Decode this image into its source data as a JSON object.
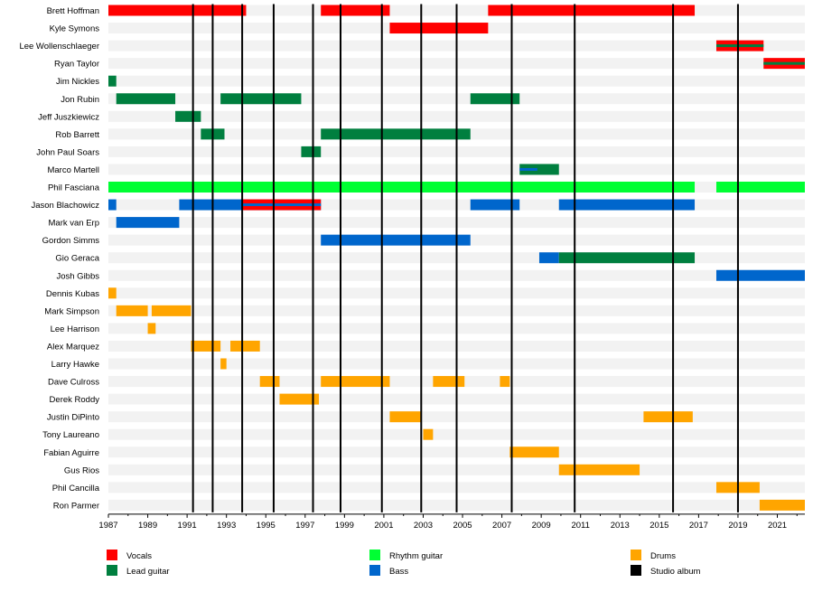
{
  "chart_data": {
    "type": "timeline",
    "x_range": [
      1987,
      2022.4
    ],
    "x_ticks": [
      "1987",
      "1989",
      "1991",
      "1993",
      "1995",
      "1997",
      "1999",
      "2001",
      "2003",
      "2005",
      "2007",
      "2009",
      "2011",
      "2013",
      "2015",
      "2017",
      "2019",
      "2021"
    ],
    "members": [
      {
        "name": "Brett Hoffman",
        "bars": [
          {
            "role": "vocals",
            "start": 1987.0,
            "end": 1994.0
          },
          {
            "role": "vocals",
            "start": 1997.8,
            "end": 2001.3
          },
          {
            "role": "vocals",
            "start": 2006.3,
            "end": 2016.8
          }
        ]
      },
      {
        "name": "Kyle Symons",
        "bars": [
          {
            "role": "vocals",
            "start": 2001.3,
            "end": 2006.3
          }
        ]
      },
      {
        "name": "Lee Wollenschlaeger",
        "bars": [
          {
            "role": "vocals",
            "start": 2017.9,
            "end": 2020.3
          },
          {
            "role": "lead_guitar",
            "start": 2017.9,
            "end": 2020.3,
            "thin": true
          }
        ]
      },
      {
        "name": "Ryan Taylor",
        "bars": [
          {
            "role": "vocals",
            "start": 2020.3,
            "end": 2022.4
          },
          {
            "role": "lead_guitar",
            "start": 2020.3,
            "end": 2022.4,
            "thin": true
          }
        ]
      },
      {
        "name": "Jim Nickles",
        "bars": [
          {
            "role": "lead_guitar",
            "start": 1987.0,
            "end": 1987.4
          }
        ]
      },
      {
        "name": "Jon Rubin",
        "bars": [
          {
            "role": "lead_guitar",
            "start": 1987.4,
            "end": 1990.4
          },
          {
            "role": "lead_guitar",
            "start": 1992.7,
            "end": 1996.8
          },
          {
            "role": "lead_guitar",
            "start": 2005.4,
            "end": 2007.9
          }
        ]
      },
      {
        "name": "Jeff Juszkiewicz",
        "bars": [
          {
            "role": "lead_guitar",
            "start": 1990.4,
            "end": 1991.7
          }
        ]
      },
      {
        "name": "Rob Barrett",
        "bars": [
          {
            "role": "lead_guitar",
            "start": 1991.7,
            "end": 1992.9
          },
          {
            "role": "lead_guitar",
            "start": 1997.8,
            "end": 2005.4
          }
        ]
      },
      {
        "name": "John Paul Soars",
        "bars": [
          {
            "role": "lead_guitar",
            "start": 1996.8,
            "end": 1997.8
          }
        ]
      },
      {
        "name": "Marco Martell",
        "bars": [
          {
            "role": "lead_guitar",
            "start": 2007.9,
            "end": 2009.9
          },
          {
            "role": "bass",
            "start": 2007.9,
            "end": 2008.8,
            "thin": true
          }
        ]
      },
      {
        "name": "Phil Fasciana",
        "bars": [
          {
            "role": "rhythm_guitar",
            "start": 1987.0,
            "end": 2016.8
          },
          {
            "role": "rhythm_guitar",
            "start": 2017.9,
            "end": 2022.4
          }
        ]
      },
      {
        "name": "Jason Blachowicz",
        "bars": [
          {
            "role": "bass",
            "start": 1987.0,
            "end": 1987.4
          },
          {
            "role": "bass",
            "start": 1990.6,
            "end": 1997.8
          },
          {
            "role": "vocals",
            "start": 1993.8,
            "end": 1997.8
          },
          {
            "role": "bass",
            "start": 1993.8,
            "end": 1997.8,
            "thin": true
          },
          {
            "role": "bass",
            "start": 2005.4,
            "end": 2007.9
          },
          {
            "role": "bass",
            "start": 2009.9,
            "end": 2016.8
          }
        ]
      },
      {
        "name": "Mark van Erp",
        "bars": [
          {
            "role": "bass",
            "start": 1987.4,
            "end": 1990.6
          }
        ]
      },
      {
        "name": "Gordon Simms",
        "bars": [
          {
            "role": "bass",
            "start": 1997.8,
            "end": 2005.4
          }
        ]
      },
      {
        "name": "Gio Geraca",
        "bars": [
          {
            "role": "bass",
            "start": 2008.9,
            "end": 2009.9
          },
          {
            "role": "lead_guitar",
            "start": 2009.9,
            "end": 2016.8
          }
        ]
      },
      {
        "name": "Josh Gibbs",
        "bars": [
          {
            "role": "bass",
            "start": 2017.9,
            "end": 2022.4
          }
        ]
      },
      {
        "name": "Dennis Kubas",
        "bars": [
          {
            "role": "drums",
            "start": 1987.0,
            "end": 1987.4
          }
        ]
      },
      {
        "name": "Mark Simpson",
        "bars": [
          {
            "role": "drums",
            "start": 1987.4,
            "end": 1989.0
          },
          {
            "role": "drums",
            "start": 1989.2,
            "end": 1991.2
          }
        ]
      },
      {
        "name": "Lee Harrison",
        "bars": [
          {
            "role": "drums",
            "start": 1989.0,
            "end": 1989.4
          }
        ]
      },
      {
        "name": "Alex Marquez",
        "bars": [
          {
            "role": "drums",
            "start": 1991.2,
            "end": 1992.7
          },
          {
            "role": "drums",
            "start": 1993.2,
            "end": 1994.7
          }
        ]
      },
      {
        "name": "Larry Hawke",
        "bars": [
          {
            "role": "drums",
            "start": 1992.7,
            "end": 1993.0
          }
        ]
      },
      {
        "name": "Dave Culross",
        "bars": [
          {
            "role": "drums",
            "start": 1994.7,
            "end": 1995.7
          },
          {
            "role": "drums",
            "start": 1997.8,
            "end": 2001.3
          },
          {
            "role": "drums",
            "start": 2003.5,
            "end": 2005.1
          },
          {
            "role": "drums",
            "start": 2006.9,
            "end": 2007.4
          }
        ]
      },
      {
        "name": "Derek Roddy",
        "bars": [
          {
            "role": "drums",
            "start": 1995.7,
            "end": 1997.7
          }
        ]
      },
      {
        "name": "Justin DiPinto",
        "bars": [
          {
            "role": "drums",
            "start": 2001.3,
            "end": 2002.9
          },
          {
            "role": "drums",
            "start": 2014.2,
            "end": 2016.7
          }
        ]
      },
      {
        "name": "Tony Laureano",
        "bars": [
          {
            "role": "drums",
            "start": 2003.0,
            "end": 2003.5
          }
        ]
      },
      {
        "name": "Fabian Aguirre",
        "bars": [
          {
            "role": "drums",
            "start": 2007.4,
            "end": 2009.9
          }
        ]
      },
      {
        "name": "Gus Rios",
        "bars": [
          {
            "role": "drums",
            "start": 2009.9,
            "end": 2014.0
          }
        ]
      },
      {
        "name": "Phil Cancilla",
        "bars": [
          {
            "role": "drums",
            "start": 2017.9,
            "end": 2020.1
          }
        ]
      },
      {
        "name": "Ron Parmer",
        "bars": [
          {
            "role": "drums",
            "start": 2020.1,
            "end": 2022.4
          }
        ]
      }
    ],
    "studio_albums": [
      1991.3,
      1992.3,
      1993.8,
      1995.4,
      1997.4,
      1998.8,
      2000.9,
      2002.9,
      2004.7,
      2007.5,
      2010.7,
      2015.7,
      2019.0
    ],
    "legend": [
      {
        "role": "vocals",
        "label": "Vocals",
        "color": "#ff0000"
      },
      {
        "role": "lead_guitar",
        "label": "Lead guitar",
        "color": "#007f3f"
      },
      {
        "role": "rhythm_guitar",
        "label": "Rhythm guitar",
        "color": "#00ff33"
      },
      {
        "role": "bass",
        "label": "Bass",
        "color": "#0066cc"
      },
      {
        "role": "drums",
        "label": "Drums",
        "color": "#ffa500"
      },
      {
        "role": "studio_album",
        "label": "Studio album",
        "color": "#000000"
      }
    ],
    "legend_placement": "bottom",
    "row_band_color": "#f2f2f2"
  }
}
